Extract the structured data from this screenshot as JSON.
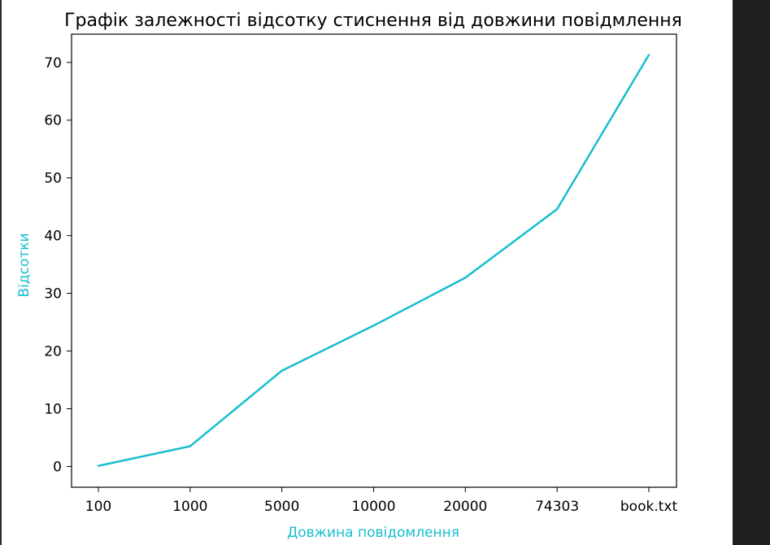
{
  "colors": {
    "line": "#17becf",
    "axis_label": "#17becf",
    "background": "#ffffff"
  },
  "chart_data": {
    "type": "line",
    "title": "Графік залежності відсотку стиснення від довжини повідмлення",
    "xlabel": "Довжина повідомлення",
    "ylabel": "Відсотки",
    "categories": [
      "100",
      "1000",
      "5000",
      "10000",
      "20000",
      "74303",
      "book.txt"
    ],
    "values": [
      0.1,
      3.5,
      16.6,
      24.4,
      32.7,
      44.6,
      71.3
    ],
    "ylim": [
      -3.6,
      74.9
    ],
    "yticks": [
      0,
      10,
      20,
      30,
      40,
      50,
      60,
      70
    ],
    "grid": false
  }
}
